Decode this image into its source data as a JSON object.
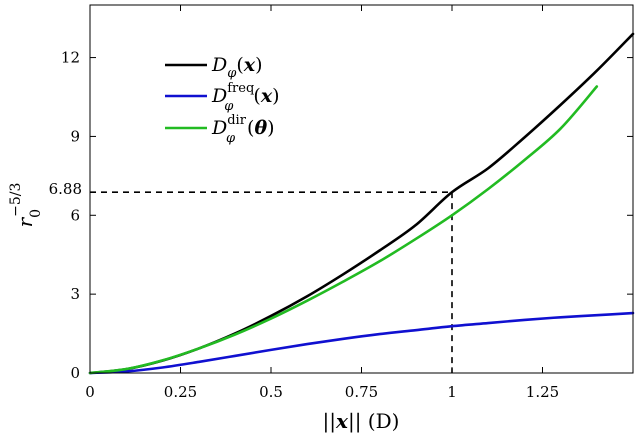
{
  "chart_data": {
    "type": "line",
    "xlabel": {
      "pre": "||",
      "var": "x",
      "post": "||  (D)"
    },
    "ylabel": {
      "base": "r",
      "sub": "0",
      "sup": "−5/3"
    },
    "xlim": [
      0,
      1.5
    ],
    "ylim": [
      0,
      14
    ],
    "xticks": [
      0,
      0.25,
      0.5,
      0.75,
      1,
      1.25
    ],
    "xtick_labels": [
      "0",
      "0.25",
      "0.5",
      "0.75",
      "1",
      "1.25"
    ],
    "yticks": [
      0,
      3,
      6,
      9,
      12
    ],
    "ytick_labels": [
      "0",
      "3",
      "6",
      "9",
      "12"
    ],
    "annotation": {
      "x": 1,
      "y": 6.88,
      "label": "6.88"
    },
    "grid": false,
    "legend_position": "top-left",
    "series": [
      {
        "name": {
          "base": "D",
          "sub": "φ",
          "sup": "",
          "arg": "x"
        },
        "color": "#000000",
        "x": [
          0,
          0.1,
          0.2,
          0.3,
          0.4,
          0.5,
          0.6,
          0.7,
          0.8,
          0.9,
          1.0,
          1.1,
          1.2,
          1.3,
          1.4,
          1.5
        ],
        "y": [
          0,
          0.145,
          0.47,
          0.93,
          1.5,
          2.17,
          2.92,
          3.76,
          4.66,
          5.63,
          6.88,
          7.79,
          8.96,
          10.2,
          11.5,
          12.9
        ]
      },
      {
        "name": {
          "base": "D",
          "sub": "φ",
          "sup": "freq",
          "arg": "x"
        },
        "color": "#1010d0",
        "x": [
          0,
          0.1,
          0.2,
          0.3,
          0.4,
          0.5,
          0.6,
          0.7,
          0.8,
          0.9,
          1.0,
          1.1,
          1.2,
          1.3,
          1.4,
          1.5
        ],
        "y": [
          0,
          0.06,
          0.21,
          0.42,
          0.65,
          0.88,
          1.1,
          1.3,
          1.48,
          1.63,
          1.78,
          1.9,
          2.02,
          2.12,
          2.2,
          2.28
        ]
      },
      {
        "name": {
          "base": "D",
          "sub": "φ",
          "sup": "dir",
          "arg": "θ"
        },
        "color": "#22bb22",
        "x": [
          0,
          0.1,
          0.2,
          0.3,
          0.4,
          0.5,
          0.6,
          0.7,
          0.8,
          0.9,
          1.0,
          1.1,
          1.2,
          1.3,
          1.4
        ],
        "y": [
          0,
          0.15,
          0.48,
          0.93,
          1.46,
          2.07,
          2.75,
          3.48,
          4.25,
          5.1,
          6.0,
          7.0,
          8.1,
          9.3,
          10.9
        ]
      }
    ]
  }
}
